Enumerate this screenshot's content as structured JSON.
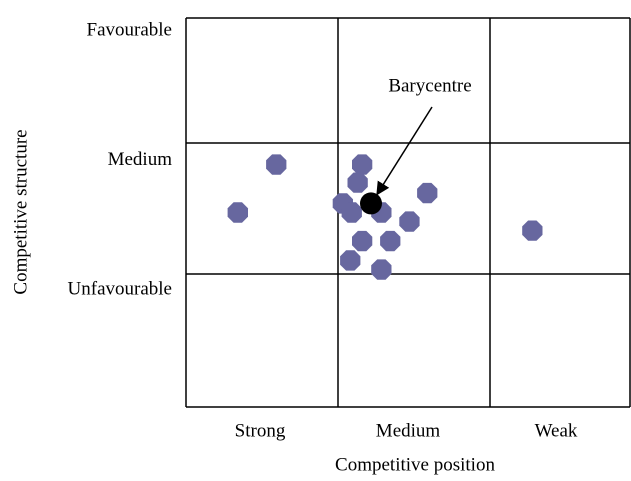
{
  "chart_data": {
    "type": "scatter",
    "x_label": "Competitive position",
    "y_label": "Competitive structure",
    "xlim": [
      0,
      3
    ],
    "ylim": [
      0,
      3
    ],
    "xticks": [
      {
        "value": 0.5,
        "label": "Strong"
      },
      {
        "value": 1.5,
        "label": "Medium"
      },
      {
        "value": 2.5,
        "label": "Weak"
      }
    ],
    "yticks": [
      {
        "value": 3,
        "label": "Favourable"
      },
      {
        "value": 2,
        "label": "Medium"
      },
      {
        "value": 1,
        "label": "Unfavourable"
      }
    ],
    "points": {
      "color": "#67679f",
      "x": [
        0.61,
        0.35,
        1.19,
        1.16,
        1.06,
        1.12,
        1.32,
        1.51,
        1.63,
        1.38,
        1.19,
        1.11,
        1.32,
        2.34
      ],
      "y": [
        1.87,
        1.5,
        1.87,
        1.73,
        1.57,
        1.5,
        1.5,
        1.43,
        1.65,
        1.28,
        1.28,
        1.13,
        1.06,
        1.36
      ]
    },
    "barycentre": {
      "label": "Barycentre",
      "x": 1.25,
      "y": 1.57,
      "color": "#000000"
    }
  }
}
